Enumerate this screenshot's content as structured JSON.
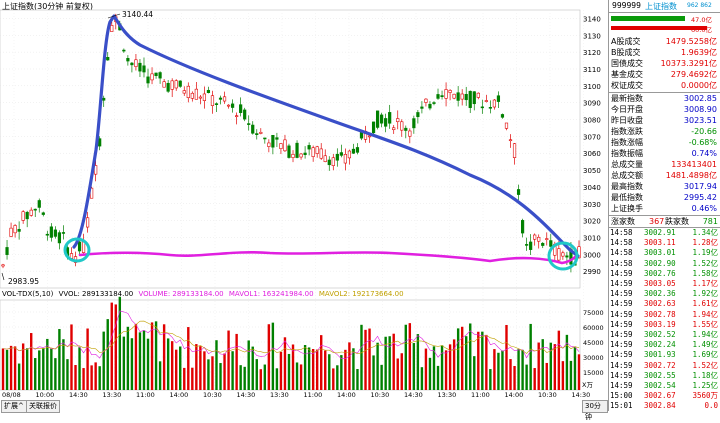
{
  "chart": {
    "title": "上证指数(30分钟 前复权)",
    "marker_high": "3140.44",
    "marker_low": "2983.95",
    "price_ticks": [
      "3140",
      "3130",
      "3120",
      "3110",
      "3100",
      "3090",
      "3080",
      "3070",
      "3060",
      "3050",
      "3040",
      "3030",
      "3020",
      "3010",
      "3000",
      "2990"
    ],
    "vol_header": {
      "name": "VOL-TDX(5,10)",
      "vvol": "VVOL: 289133184.00",
      "volume": "VOLUME: 289133184.00",
      "mavol1": "MAVOL1: 163241984.00",
      "mavol2": "MAVOL2: 192173664.00"
    },
    "vol_ticks": [
      "75000",
      "60000",
      "45000",
      "30000",
      "15000"
    ],
    "vol_unit": "X万",
    "time_labels": [
      "08/08",
      "10:00",
      "14:30",
      "13:30",
      "11:00",
      "14:00",
      "10:30",
      "14:30",
      "13:30",
      "11:00",
      "14:00",
      "10:30",
      "14:30",
      "13:30",
      "11:00",
      "14:00",
      "10:30",
      "14:30"
    ],
    "bottom_tabs": [
      "扩展^",
      "关联报价"
    ],
    "period_label": "30分钟",
    "colors": {
      "up": "#e00000",
      "down": "#008000",
      "trend": "#3a4fc8",
      "ma": "#e020e0",
      "circle": "#20c8c8"
    }
  },
  "side": {
    "code": "999999",
    "name": "上证指数",
    "suffix": "962 862",
    "bar_top_value": "47.0亿",
    "bar_bottom_value": "60.0亿",
    "stats": [
      {
        "k": "A股成交",
        "v": "1479.5258亿",
        "c": "red"
      },
      {
        "k": "B股成交",
        "v": "1.9639亿",
        "c": "red"
      },
      {
        "k": "国债成交",
        "v": "10373.3291亿",
        "c": "red"
      },
      {
        "k": "基金成交",
        "v": "279.4692亿",
        "c": "red"
      },
      {
        "k": "权证成交",
        "v": "0.0000亿",
        "c": "red"
      }
    ],
    "quote": [
      {
        "k": "最新指数",
        "v": "3002.85",
        "c": "blue"
      },
      {
        "k": "今日开盘",
        "v": "3008.90",
        "c": "blue"
      },
      {
        "k": "昨日收盘",
        "v": "3023.51",
        "c": "blue"
      },
      {
        "k": "指数涨跌",
        "v": "-20.66",
        "c": "green"
      },
      {
        "k": "指数涨幅",
        "v": "-0.68%",
        "c": "green"
      },
      {
        "k": "指数振幅",
        "v": "0.74%",
        "c": "blue"
      },
      {
        "k": "总成交量",
        "v": "133413401",
        "c": "red"
      },
      {
        "k": "总成交额",
        "v": "1481.4898亿",
        "c": "red"
      },
      {
        "k": "最高指数",
        "v": "3017.94",
        "c": "blue"
      },
      {
        "k": "最低指数",
        "v": "2995.42",
        "c": "blue"
      },
      {
        "k": "上证换手",
        "v": "0.46%",
        "c": "blue"
      }
    ],
    "updown": {
      "up_label": "涨家数",
      "up": "367",
      "down_label": "跌家数",
      "down": "781"
    },
    "ticks": [
      {
        "t": "14:58",
        "p": "3002.91",
        "v": "1.34亿",
        "c": "green"
      },
      {
        "t": "14:58",
        "p": "3003.11",
        "v": "1.28亿",
        "c": "red"
      },
      {
        "t": "14:58",
        "p": "3003.01",
        "v": "1.19亿",
        "c": "green"
      },
      {
        "t": "14:58",
        "p": "3002.90",
        "v": "1.52亿",
        "c": "green"
      },
      {
        "t": "14:59",
        "p": "3002.76",
        "v": "1.58亿",
        "c": "green"
      },
      {
        "t": "14:59",
        "p": "3003.05",
        "v": "1.17亿",
        "c": "red"
      },
      {
        "t": "14:59",
        "p": "3002.36",
        "v": "1.92亿",
        "c": "green"
      },
      {
        "t": "14:59",
        "p": "3002.63",
        "v": "1.61亿",
        "c": "red"
      },
      {
        "t": "14:59",
        "p": "3002.78",
        "v": "1.94亿",
        "c": "red"
      },
      {
        "t": "14:59",
        "p": "3003.19",
        "v": "1.55亿",
        "c": "red"
      },
      {
        "t": "14:59",
        "p": "3002.52",
        "v": "1.94亿",
        "c": "green"
      },
      {
        "t": "14:59",
        "p": "3002.24",
        "v": "1.49亿",
        "c": "green"
      },
      {
        "t": "14:59",
        "p": "3001.93",
        "v": "1.69亿",
        "c": "green"
      },
      {
        "t": "14:59",
        "p": "3002.72",
        "v": "1.52亿",
        "c": "red"
      },
      {
        "t": "14:59",
        "p": "3002.55",
        "v": "1.18亿",
        "c": "green"
      },
      {
        "t": "14:59",
        "p": "3002.54",
        "v": "1.25亿",
        "c": "green"
      },
      {
        "t": "15:00",
        "p": "3002.67",
        "v": "3560万",
        "c": "red"
      },
      {
        "t": "15:01",
        "p": "3002.84",
        "v": "0.0",
        "c": "red"
      }
    ]
  }
}
